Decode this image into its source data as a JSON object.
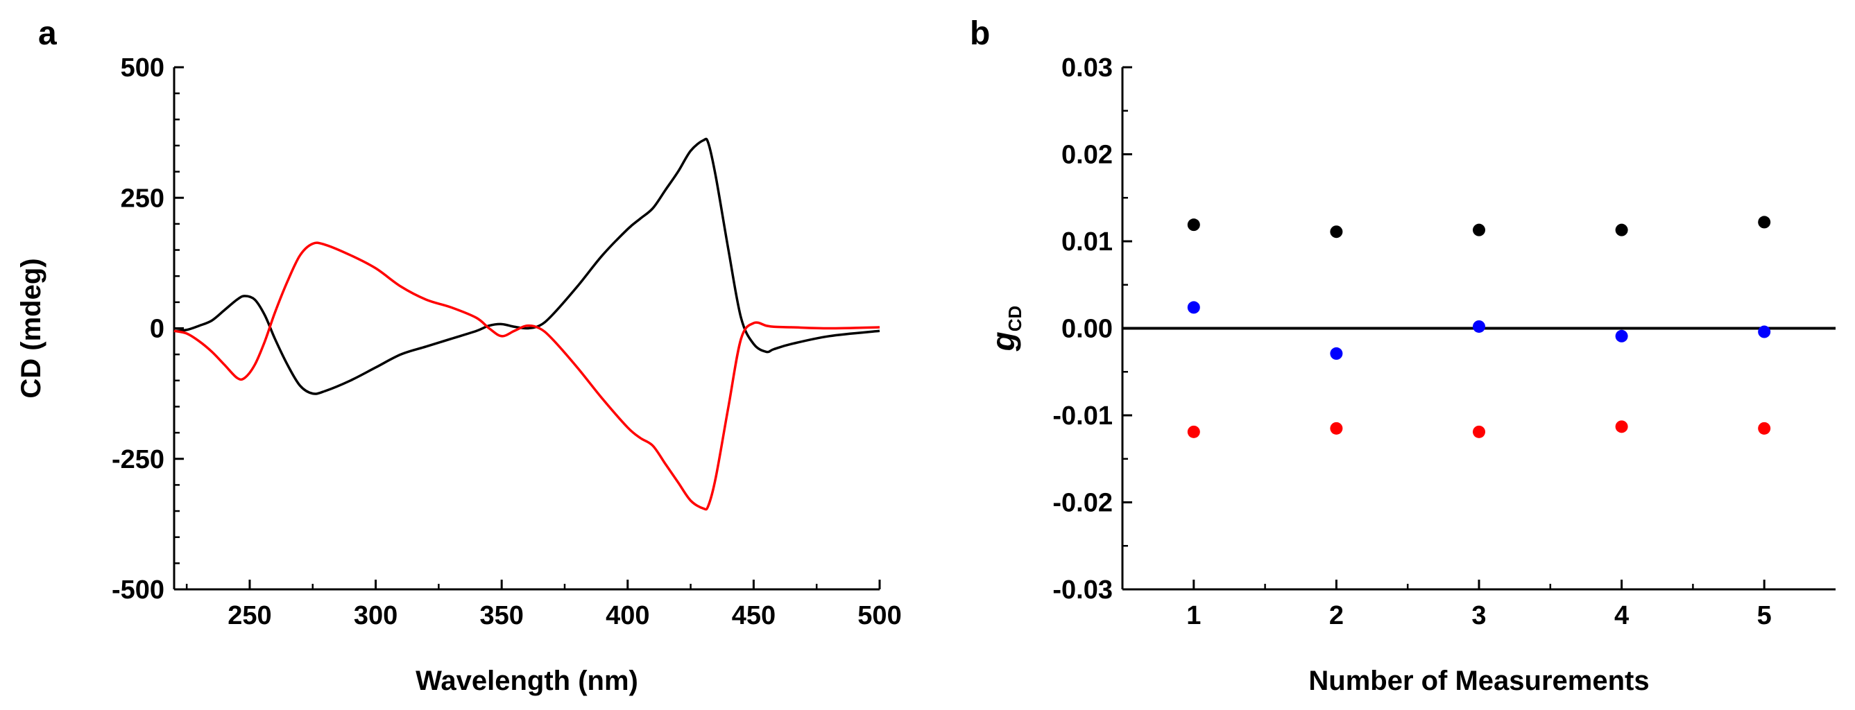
{
  "chart_data": [
    {
      "panel_label": "a",
      "type": "line",
      "xlabel": "Wavelength (nm)",
      "ylabel": "CD (mdeg)",
      "xlim": [
        220,
        500
      ],
      "ylim": [
        -500,
        500
      ],
      "xticks": [
        250,
        300,
        350,
        400,
        450,
        500
      ],
      "yticks": [
        -500,
        -250,
        0,
        250,
        500
      ],
      "xtick_labels": [
        "250",
        "300",
        "350",
        "400",
        "450",
        "500"
      ],
      "ytick_labels": [
        "-500",
        "-250",
        "0",
        "250",
        "500"
      ],
      "grid": false,
      "series": [
        {
          "name": "black",
          "color": "#000000",
          "x": [
            220,
            225,
            230,
            235,
            240,
            245,
            248,
            252,
            256,
            260,
            265,
            270,
            275,
            280,
            290,
            300,
            310,
            320,
            330,
            340,
            345,
            350,
            355,
            360,
            365,
            370,
            380,
            390,
            400,
            405,
            410,
            415,
            420,
            425,
            430,
            432,
            435,
            440,
            445,
            450,
            455,
            458,
            465,
            480,
            500
          ],
          "y": [
            -5,
            -3,
            5,
            15,
            35,
            55,
            62,
            55,
            25,
            -20,
            -70,
            -110,
            -125,
            -120,
            -100,
            -75,
            -50,
            -35,
            -20,
            -5,
            5,
            8,
            3,
            0,
            5,
            25,
            80,
            140,
            190,
            210,
            230,
            265,
            300,
            340,
            360,
            355,
            290,
            150,
            20,
            -30,
            -45,
            -40,
            -30,
            -15,
            -5
          ]
        },
        {
          "name": "red",
          "color": "#ff0000",
          "x": [
            220,
            225,
            230,
            235,
            240,
            245,
            248,
            252,
            256,
            260,
            265,
            270,
            275,
            280,
            290,
            300,
            310,
            320,
            330,
            340,
            345,
            350,
            355,
            360,
            365,
            370,
            380,
            390,
            400,
            405,
            410,
            415,
            420,
            425,
            430,
            432,
            435,
            440,
            445,
            450,
            455,
            458,
            465,
            480,
            500
          ],
          "y": [
            -5,
            -10,
            -25,
            -45,
            -70,
            -95,
            -95,
            -70,
            -25,
            30,
            90,
            140,
            162,
            160,
            140,
            115,
            80,
            55,
            40,
            20,
            0,
            -15,
            -5,
            5,
            0,
            -20,
            -75,
            -135,
            -190,
            -210,
            -225,
            -260,
            -295,
            -330,
            -345,
            -340,
            -285,
            -150,
            -20,
            10,
            5,
            3,
            2,
            0,
            2
          ]
        }
      ]
    },
    {
      "panel_label": "b",
      "type": "scatter",
      "xlabel": "Number of Measurements",
      "ylabel": "g",
      "ylabel_subscript": "CD",
      "xlim": [
        0.5,
        5.5
      ],
      "ylim": [
        -0.03,
        0.03
      ],
      "xticks": [
        1,
        2,
        3,
        4,
        5
      ],
      "yticks": [
        -0.03,
        -0.02,
        -0.01,
        0.0,
        0.01,
        0.02,
        0.03
      ],
      "xtick_labels": [
        "1",
        "2",
        "3",
        "4",
        "5"
      ],
      "ytick_labels": [
        "-0.03",
        "-0.02",
        "-0.01",
        "0.00",
        "0.01",
        "0.02",
        "0.03"
      ],
      "reference_line": 0,
      "grid": false,
      "series": [
        {
          "name": "black",
          "color": "#000000",
          "x": [
            1,
            2,
            3,
            4,
            5
          ],
          "y": [
            0.0119,
            0.0111,
            0.0113,
            0.0113,
            0.0122
          ]
        },
        {
          "name": "blue",
          "color": "#0000ff",
          "x": [
            1,
            2,
            3,
            4,
            5
          ],
          "y": [
            0.0024,
            -0.0029,
            0.0002,
            -0.0009,
            -0.0004
          ]
        },
        {
          "name": "red",
          "color": "#ff0000",
          "x": [
            1,
            2,
            3,
            4,
            5
          ],
          "y": [
            -0.0119,
            -0.0115,
            -0.0119,
            -0.0113,
            -0.0115
          ]
        }
      ]
    }
  ]
}
